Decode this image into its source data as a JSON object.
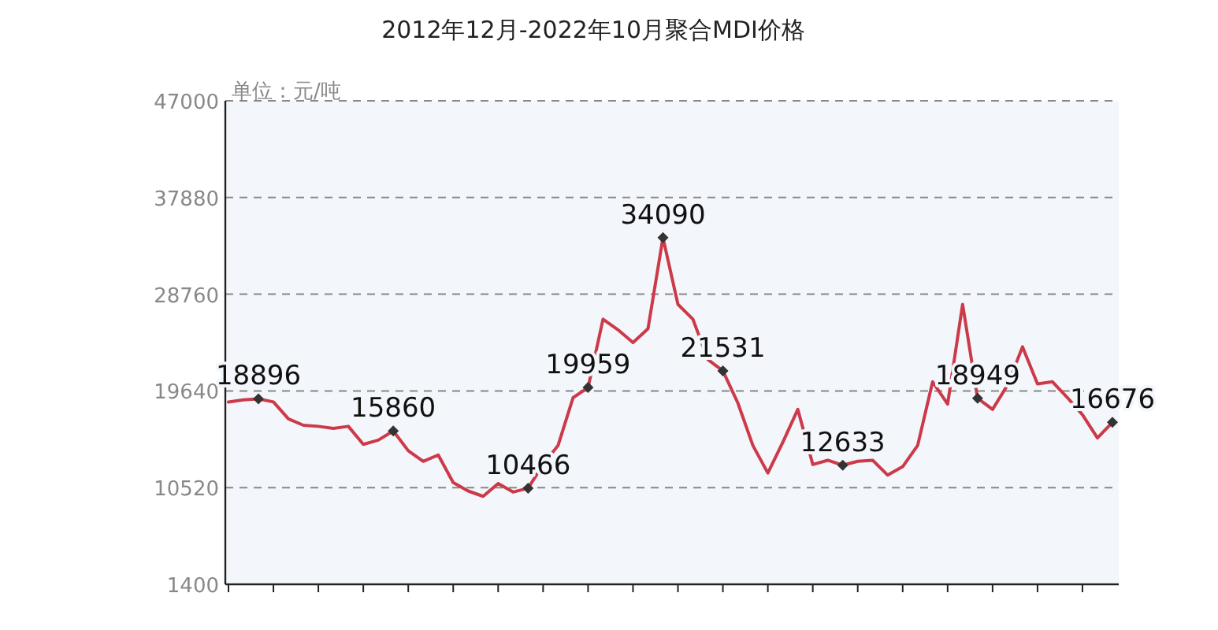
{
  "chart_data": {
    "type": "line",
    "title": "2012年12月-2022年10月聚合MDI价格",
    "ylabel": "单位：元/吨",
    "categories": [
      null,
      null,
      null,
      null,
      null,
      null,
      null,
      null,
      null,
      null,
      null,
      null,
      null,
      null,
      null,
      null,
      null,
      null,
      null,
      null,
      null,
      null,
      null,
      null,
      null,
      null,
      null,
      null,
      null,
      null,
      null,
      null,
      null,
      null,
      null,
      null,
      null,
      null,
      null,
      null,
      null,
      null,
      null,
      null,
      null,
      null,
      null,
      null,
      null,
      null,
      null,
      null,
      null,
      null,
      null,
      null,
      null,
      null,
      null,
      null
    ],
    "series": [
      {
        "color": "#cc3a4a",
        "values": [
          18600,
          18800,
          18896,
          18600,
          17000,
          16400,
          16300,
          16100,
          16300,
          14600,
          15000,
          15860,
          14000,
          13000,
          13600,
          11000,
          10200,
          9700,
          10900,
          10100,
          10466,
          12700,
          14500,
          19000,
          19959,
          26400,
          25400,
          24200,
          25500,
          34090,
          27800,
          26400,
          22600,
          21531,
          18500,
          14500,
          11900,
          14800,
          17900,
          12700,
          13100,
          12633,
          13000,
          13100,
          11700,
          12500,
          14500,
          20500,
          18400,
          27800,
          18949,
          17900,
          20200,
          23800,
          20300,
          20500,
          19000,
          17400,
          15200,
          16676
        ],
        "value_labels": [
          null,
          null,
          "18896",
          null,
          null,
          null,
          null,
          null,
          null,
          null,
          null,
          "15860",
          null,
          null,
          null,
          null,
          null,
          null,
          null,
          null,
          "10466",
          null,
          null,
          null,
          "19959",
          null,
          null,
          null,
          null,
          "34090",
          null,
          null,
          null,
          "21531",
          null,
          null,
          null,
          null,
          null,
          null,
          null,
          "12633",
          null,
          null,
          null,
          null,
          null,
          null,
          null,
          null,
          "18949",
          null,
          null,
          null,
          null,
          null,
          null,
          null,
          null,
          "16676"
        ]
      }
    ],
    "ylim": [
      1400,
      47000
    ],
    "yticks": [
      1400,
      10520,
      19640,
      28760,
      37880,
      47000
    ],
    "grid": "y",
    "line_style": "solid"
  }
}
